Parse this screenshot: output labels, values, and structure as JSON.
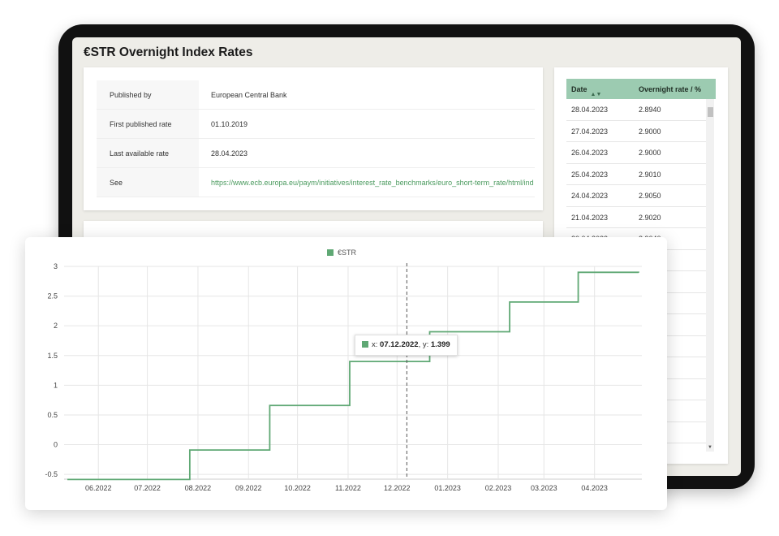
{
  "page": {
    "title": "€STR Overnight Index Rates"
  },
  "info": {
    "rows": [
      {
        "label": "Published by",
        "value": "European Central Bank"
      },
      {
        "label": "First published rate",
        "value": "01.10.2019"
      },
      {
        "label": "Last available rate",
        "value": "28.04.2023"
      },
      {
        "label": "See",
        "value": "https://www.ecb.europa.eu/paym/initiatives/interest_rate_benchmarks/euro_short-term_rate/html/ind"
      }
    ]
  },
  "rates_table": {
    "columns": {
      "date": "Date",
      "rate": "Overnight rate / %"
    },
    "sort_icon": "sort-arrows-icon",
    "rows": [
      {
        "date": "28.04.2023",
        "rate": "2.8940"
      },
      {
        "date": "27.04.2023",
        "rate": "2.9000"
      },
      {
        "date": "26.04.2023",
        "rate": "2.9000"
      },
      {
        "date": "25.04.2023",
        "rate": "2.9010"
      },
      {
        "date": "24.04.2023",
        "rate": "2.9050"
      },
      {
        "date": "21.04.2023",
        "rate": "2.9020"
      },
      {
        "date": "20.04.2023",
        "rate": "2.9040"
      }
    ]
  },
  "tooltip": {
    "x_label": "x: ",
    "x_value": "07.12.2022",
    "sep": ", y: ",
    "y_value": "1.399"
  },
  "colors": {
    "accent": "#5fa874",
    "header": "#9ccbb1",
    "link": "#4a9a5e"
  },
  "chart_data": {
    "type": "line",
    "step": true,
    "legend": {
      "name": "€STR",
      "position": "top-center"
    },
    "series": [
      {
        "name": "€STR",
        "x": [
          "2022-05-13",
          "2022-07-26",
          "2022-07-27",
          "2022-09-13",
          "2022-09-14",
          "2022-11-01",
          "2022-11-02",
          "2022-12-20",
          "2022-12-21",
          "2023-02-07",
          "2023-02-08",
          "2023-03-21",
          "2023-03-22",
          "2023-04-28"
        ],
        "y": [
          -0.585,
          -0.585,
          -0.09,
          -0.09,
          0.66,
          0.66,
          1.4,
          1.4,
          1.9,
          1.9,
          2.4,
          2.4,
          2.9,
          2.894
        ]
      }
    ],
    "x_ticks": [
      "06.2022",
      "07.2022",
      "08.2022",
      "09.2022",
      "10.2022",
      "11.2022",
      "12.2022",
      "01.2023",
      "02.2023",
      "03.2023",
      "04.2023"
    ],
    "y_ticks": [
      "-0.5",
      "0",
      "0.5",
      "1",
      "1.5",
      "2",
      "2.5",
      "3"
    ],
    "xlim": [
      "2022-05-11",
      "2023-04-30"
    ],
    "ylim": [
      -0.58,
      3.0
    ],
    "grid": true,
    "crosshair_x": "2022-12-07",
    "title": "",
    "xlabel": "",
    "ylabel": ""
  }
}
